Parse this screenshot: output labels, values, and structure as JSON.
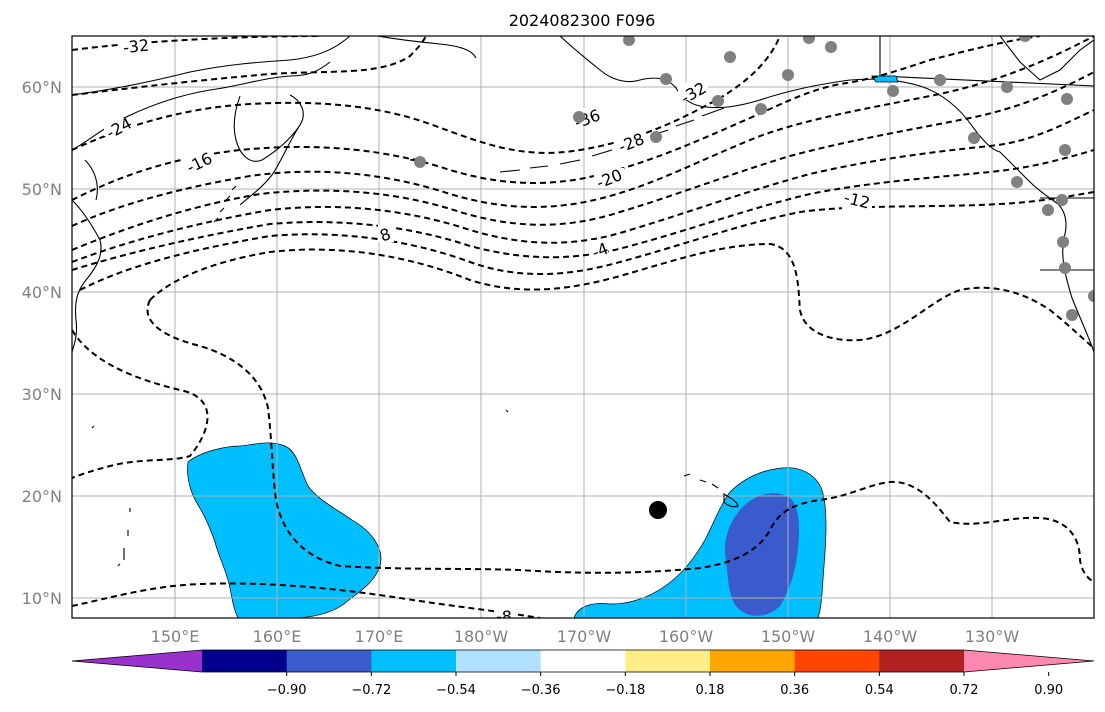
{
  "title": "2024082300 F096",
  "lat_labels": [
    "60°N",
    "50°N",
    "40°N",
    "30°N",
    "20°N",
    "10°N"
  ],
  "lon_labels": [
    "150°E",
    "160°E",
    "170°E",
    "180°W",
    "170°W",
    "160°W",
    "150°W",
    "140°W",
    "130°W"
  ],
  "contour_labels": [
    "-32",
    "-24",
    "-16",
    "8",
    "-36",
    "-28",
    "-20",
    "-4",
    "-32",
    "-12",
    "-8"
  ],
  "colorbar": {
    "ticks": [
      "−0.90",
      "−0.72",
      "−0.54",
      "−0.36",
      "−0.18",
      "0.18",
      "0.36",
      "0.54",
      "0.72",
      "0.90"
    ],
    "colors": [
      "#9932cc",
      "#00008b",
      "#3a5bcc",
      "#00bfff",
      "#b0e0ff",
      "#ffffff",
      "#ffee88",
      "#ffa500",
      "#ff4500",
      "#b22222",
      "#ff88b0"
    ]
  },
  "fill_colors": {
    "light_blue": "#00bfff",
    "dark_blue": "#3a5bcc"
  },
  "station_color": "#808080",
  "storm_marker_color": "#000000"
}
